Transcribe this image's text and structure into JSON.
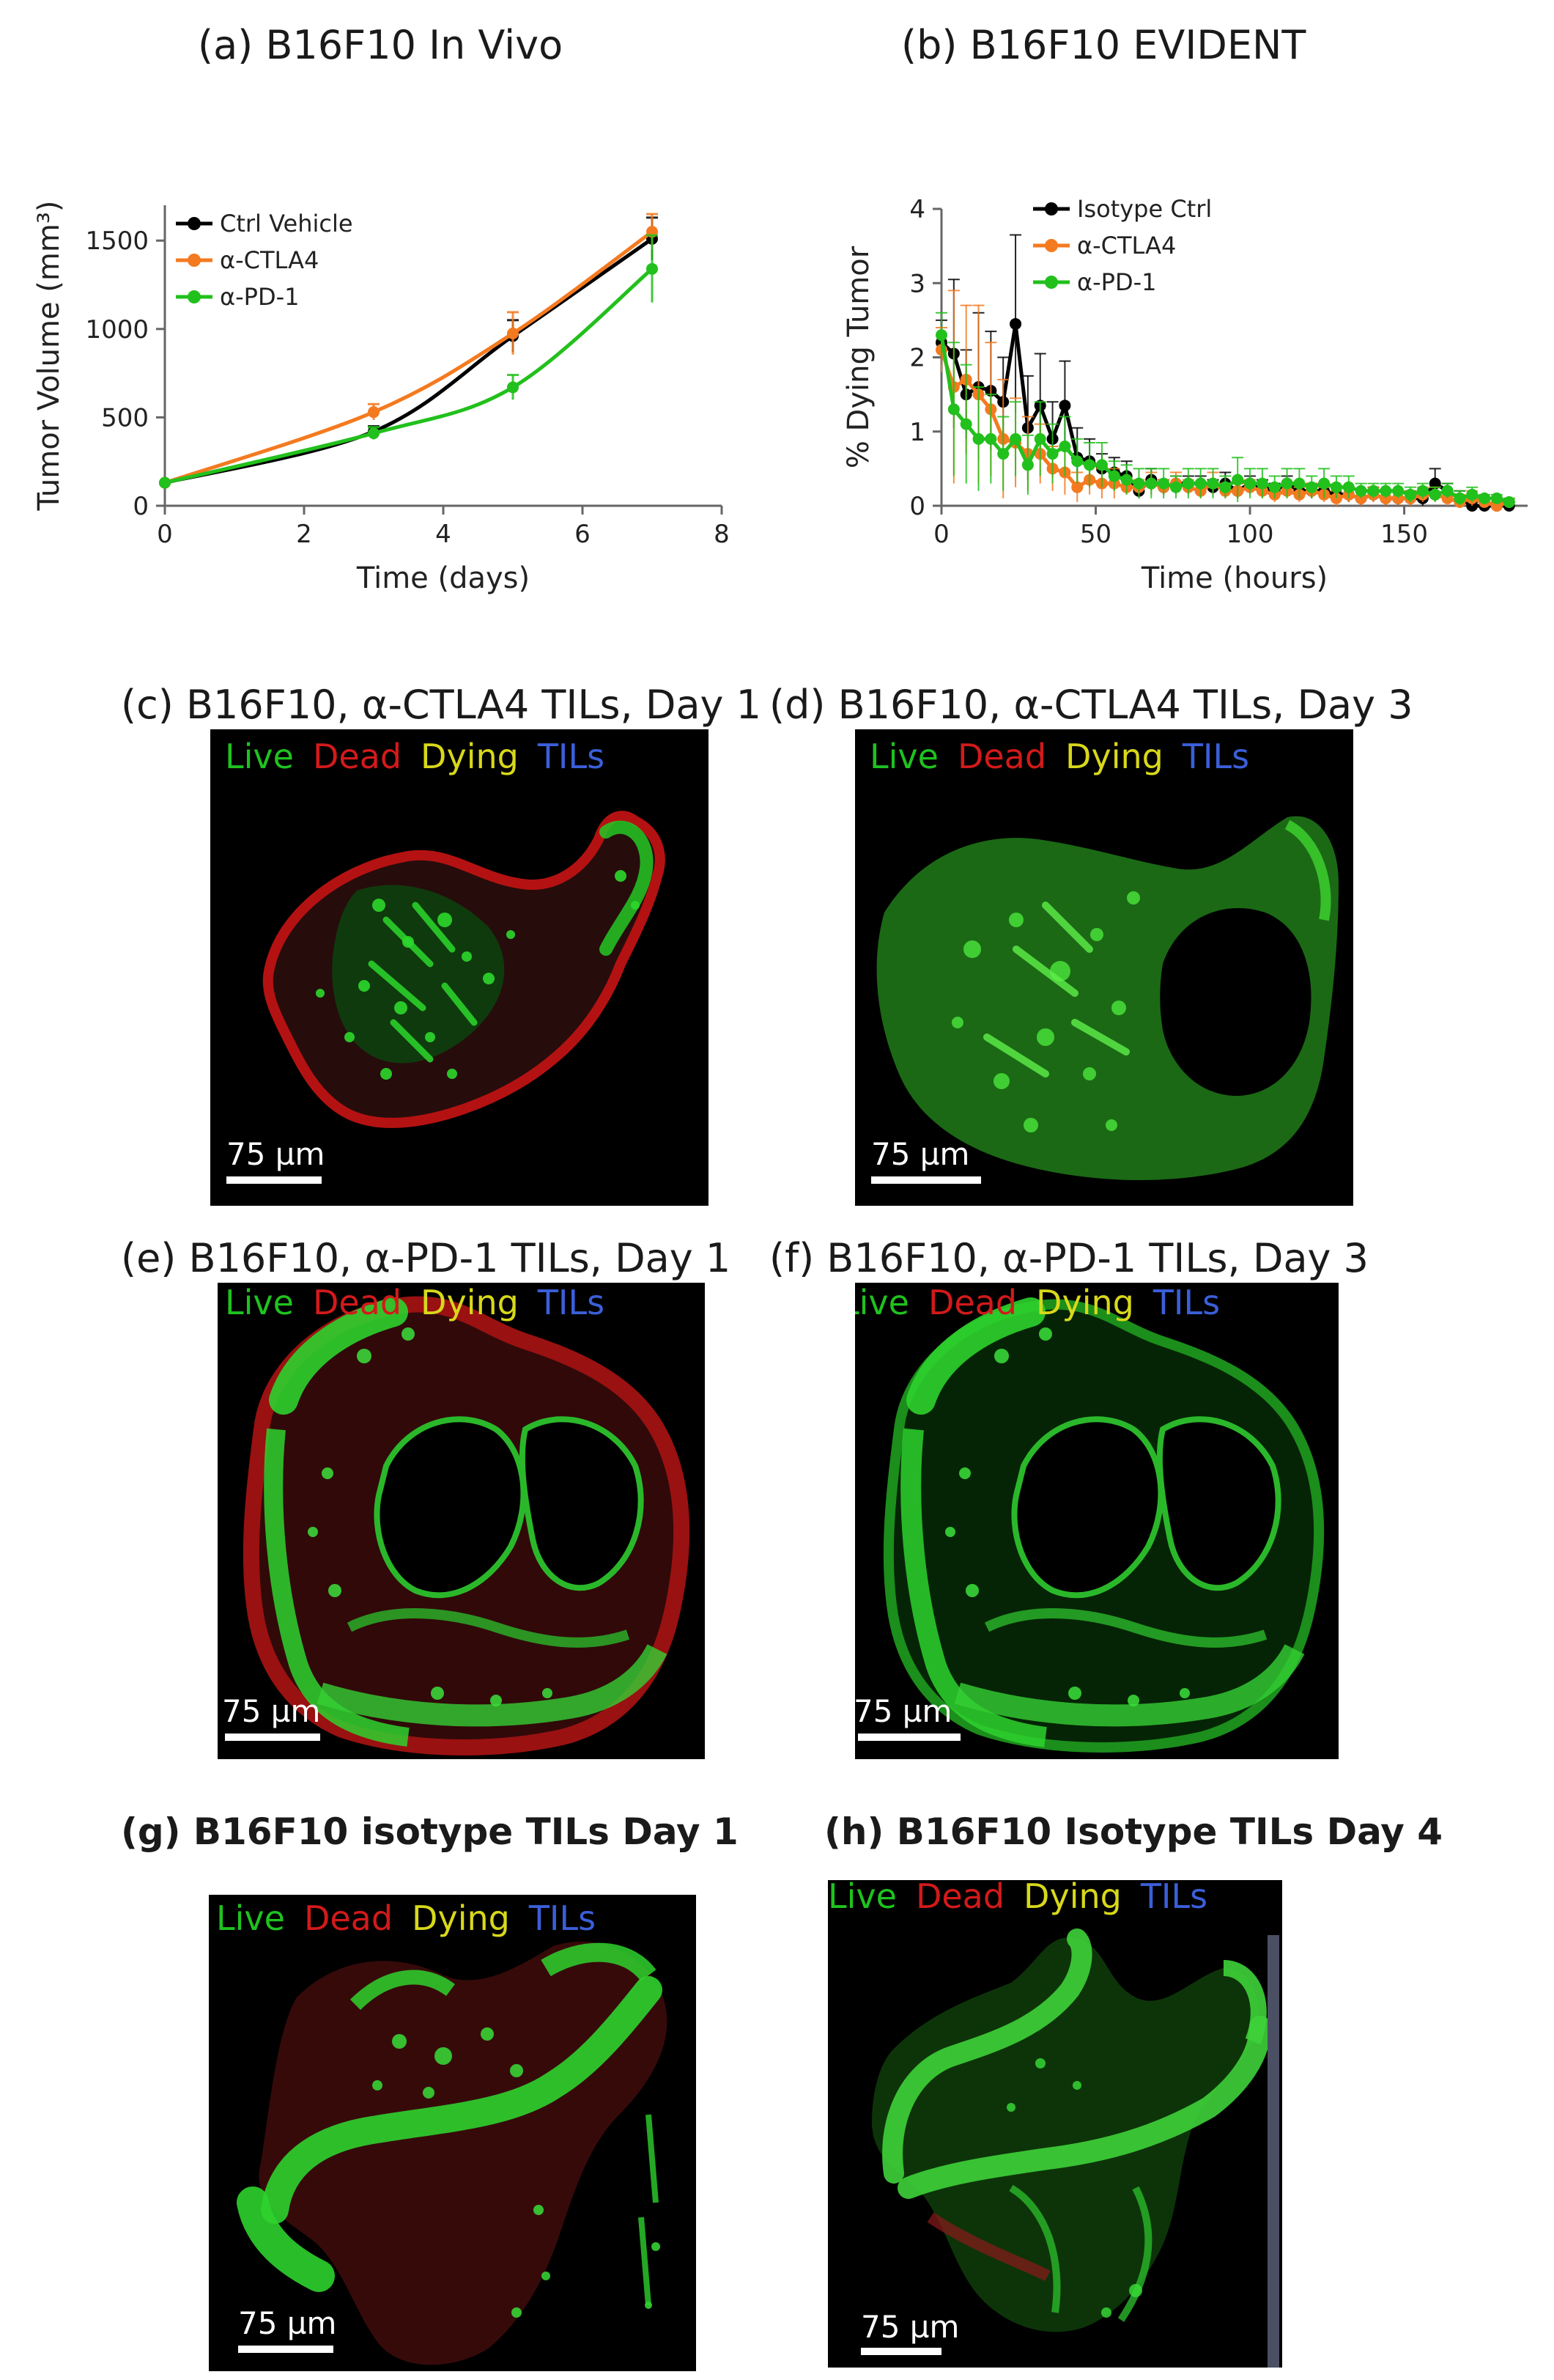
{
  "colors": {
    "black": "#000000",
    "orange": "#f47a20",
    "green": "#22c01c",
    "live": "#1fc21f",
    "dead": "#d21a1a",
    "dying": "#d8d81a",
    "tils": "#3a5fd9"
  },
  "chart_data": [
    {
      "type": "line",
      "panel_title": "(a) B16F10 In Vivo",
      "xlabel": "Time (days)",
      "ylabel": "Tumor Volume (mm³)",
      "xlim": [
        0,
        8
      ],
      "ylim": [
        0,
        1700
      ],
      "x_ticks": [
        0,
        2,
        4,
        6,
        8
      ],
      "y_ticks": [
        0,
        500,
        1000,
        1500
      ],
      "legend_position": "top-left",
      "series": [
        {
          "name": "Ctrl Vehicle",
          "color": "#000000",
          "x": [
            0,
            3,
            5,
            7
          ],
          "y": [
            130,
            420,
            960,
            1510
          ],
          "err": [
            0,
            30,
            90,
            120
          ]
        },
        {
          "name": "α-CTLA4",
          "color": "#f47a20",
          "x": [
            0,
            3,
            5,
            7
          ],
          "y": [
            130,
            530,
            975,
            1550
          ],
          "err": [
            0,
            45,
            120,
            100
          ]
        },
        {
          "name": "α-PD-1",
          "color": "#22c01c",
          "x": [
            0,
            3,
            5,
            7
          ],
          "y": [
            130,
            410,
            670,
            1340
          ],
          "err": [
            0,
            35,
            70,
            190
          ]
        }
      ]
    },
    {
      "type": "line",
      "panel_title": "(b) B16F10 EVIDENT",
      "xlabel": "Time (hours)",
      "ylabel": "% Dying Tumor",
      "xlim": [
        0,
        190
      ],
      "ylim": [
        0,
        4
      ],
      "x_ticks": [
        0,
        50,
        100,
        150
      ],
      "y_ticks": [
        0,
        1,
        2,
        3,
        4
      ],
      "legend_position": "top-center",
      "series": [
        {
          "name": "Isotype Ctrl",
          "color": "#000000",
          "x": [
            0,
            4,
            8,
            12,
            16,
            20,
            24,
            28,
            32,
            36,
            40,
            44,
            48,
            52,
            56,
            60,
            64,
            68,
            72,
            76,
            80,
            84,
            88,
            92,
            96,
            100,
            104,
            108,
            112,
            116,
            120,
            124,
            128,
            132,
            136,
            140,
            144,
            148,
            152,
            156,
            160,
            164,
            168,
            172,
            176,
            180,
            184
          ],
          "y": [
            2.2,
            2.05,
            1.5,
            1.6,
            1.55,
            1.4,
            2.45,
            1.05,
            1.35,
            0.9,
            1.35,
            0.65,
            0.6,
            0.5,
            0.45,
            0.4,
            0.2,
            0.35,
            0.25,
            0.3,
            0.3,
            0.3,
            0.25,
            0.3,
            0.2,
            0.3,
            0.25,
            0.2,
            0.3,
            0.2,
            0.2,
            0.2,
            0.15,
            0.15,
            0.1,
            0.15,
            0.1,
            0.1,
            0.1,
            0.1,
            0.3,
            0.2,
            0.1,
            0.0,
            0.0,
            0.0,
            0.0
          ],
          "err": [
            0.3,
            1.0,
            0.6,
            1.0,
            0.8,
            0.6,
            1.2,
            0.7,
            0.7,
            0.5,
            0.6,
            0.4,
            0.3,
            0.2,
            0.2,
            0.2,
            0.1,
            0.15,
            0.1,
            0.1,
            0.1,
            0.1,
            0.1,
            0.15,
            0.1,
            0.1,
            0.1,
            0.1,
            0.1,
            0.1,
            0.1,
            0.1,
            0.1,
            0.1,
            0.1,
            0.1,
            0.1,
            0.1,
            0.1,
            0.1,
            0.2,
            0.1,
            0.1,
            0.05,
            0.05,
            0.05,
            0.05
          ]
        },
        {
          "name": "α-CTLA4",
          "color": "#f47a20",
          "x": [
            0,
            4,
            8,
            12,
            16,
            20,
            24,
            28,
            32,
            36,
            40,
            44,
            48,
            52,
            56,
            60,
            64,
            68,
            72,
            76,
            80,
            84,
            88,
            92,
            96,
            100,
            104,
            108,
            112,
            116,
            120,
            124,
            128,
            132,
            136,
            140,
            144,
            148,
            152,
            156,
            160,
            164,
            168,
            172,
            176,
            180,
            184
          ],
          "y": [
            2.1,
            1.6,
            1.7,
            1.5,
            1.3,
            0.9,
            0.85,
            0.7,
            0.7,
            0.5,
            0.45,
            0.25,
            0.35,
            0.3,
            0.3,
            0.25,
            0.25,
            0.3,
            0.25,
            0.3,
            0.25,
            0.2,
            0.3,
            0.2,
            0.2,
            0.25,
            0.2,
            0.15,
            0.2,
            0.15,
            0.2,
            0.15,
            0.1,
            0.15,
            0.1,
            0.15,
            0.1,
            0.1,
            0.1,
            0.15,
            0.15,
            0.1,
            0.05,
            0.1,
            0.05,
            0.0,
            0.05
          ],
          "err": [
            0.3,
            1.3,
            1.0,
            1.2,
            0.9,
            0.8,
            0.6,
            0.5,
            0.4,
            0.3,
            0.3,
            0.2,
            0.2,
            0.2,
            0.2,
            0.1,
            0.1,
            0.15,
            0.1,
            0.15,
            0.1,
            0.1,
            0.15,
            0.1,
            0.1,
            0.1,
            0.1,
            0.1,
            0.1,
            0.1,
            0.1,
            0.1,
            0.1,
            0.1,
            0.1,
            0.1,
            0.1,
            0.1,
            0.1,
            0.1,
            0.1,
            0.1,
            0.1,
            0.1,
            0.05,
            0.05,
            0.05
          ]
        },
        {
          "name": "α-PD-1",
          "color": "#22c01c",
          "x": [
            0,
            4,
            8,
            12,
            16,
            20,
            24,
            28,
            32,
            36,
            40,
            44,
            48,
            52,
            56,
            60,
            64,
            68,
            72,
            76,
            80,
            84,
            88,
            92,
            96,
            100,
            104,
            108,
            112,
            116,
            120,
            124,
            128,
            132,
            136,
            140,
            144,
            148,
            152,
            156,
            160,
            164,
            168,
            172,
            176,
            180,
            184
          ],
          "y": [
            2.3,
            1.3,
            1.1,
            0.9,
            0.9,
            0.7,
            0.9,
            0.55,
            0.9,
            0.7,
            0.8,
            0.6,
            0.55,
            0.55,
            0.4,
            0.35,
            0.3,
            0.3,
            0.3,
            0.25,
            0.3,
            0.3,
            0.3,
            0.25,
            0.35,
            0.3,
            0.3,
            0.25,
            0.3,
            0.3,
            0.25,
            0.3,
            0.25,
            0.25,
            0.2,
            0.2,
            0.2,
            0.2,
            0.15,
            0.2,
            0.15,
            0.2,
            0.1,
            0.15,
            0.1,
            0.1,
            0.05
          ],
          "err": [
            0.3,
            0.9,
            0.8,
            0.7,
            0.6,
            0.5,
            0.5,
            0.4,
            0.5,
            0.4,
            0.4,
            0.3,
            0.3,
            0.3,
            0.2,
            0.2,
            0.2,
            0.2,
            0.2,
            0.15,
            0.2,
            0.2,
            0.2,
            0.15,
            0.3,
            0.2,
            0.2,
            0.15,
            0.2,
            0.2,
            0.15,
            0.2,
            0.15,
            0.15,
            0.1,
            0.1,
            0.1,
            0.1,
            0.1,
            0.1,
            0.1,
            0.1,
            0.1,
            0.1,
            0.05,
            0.05,
            0.05
          ]
        }
      ]
    }
  ],
  "panels": {
    "c": {
      "title": "(c) B16F10, α-CTLA4 TILs, Day 1"
    },
    "d": {
      "title": "(d) B16F10, α-CTLA4 TILs, Day 3"
    },
    "e": {
      "title": "(e) B16F10, α-PD-1 TILs, Day 1"
    },
    "f": {
      "title": "(f) B16F10, α-PD-1 TILs, Day 3"
    },
    "g": {
      "title": "(g)   B16F10 isotype TILs Day 1"
    },
    "h": {
      "title": "(h) B16F10 Isotype TILs Day 4"
    }
  },
  "micro_legend": {
    "live": "Live",
    "dead": "Dead",
    "dying": "Dying",
    "tils": "TILs"
  },
  "scale_label": "75 µm"
}
